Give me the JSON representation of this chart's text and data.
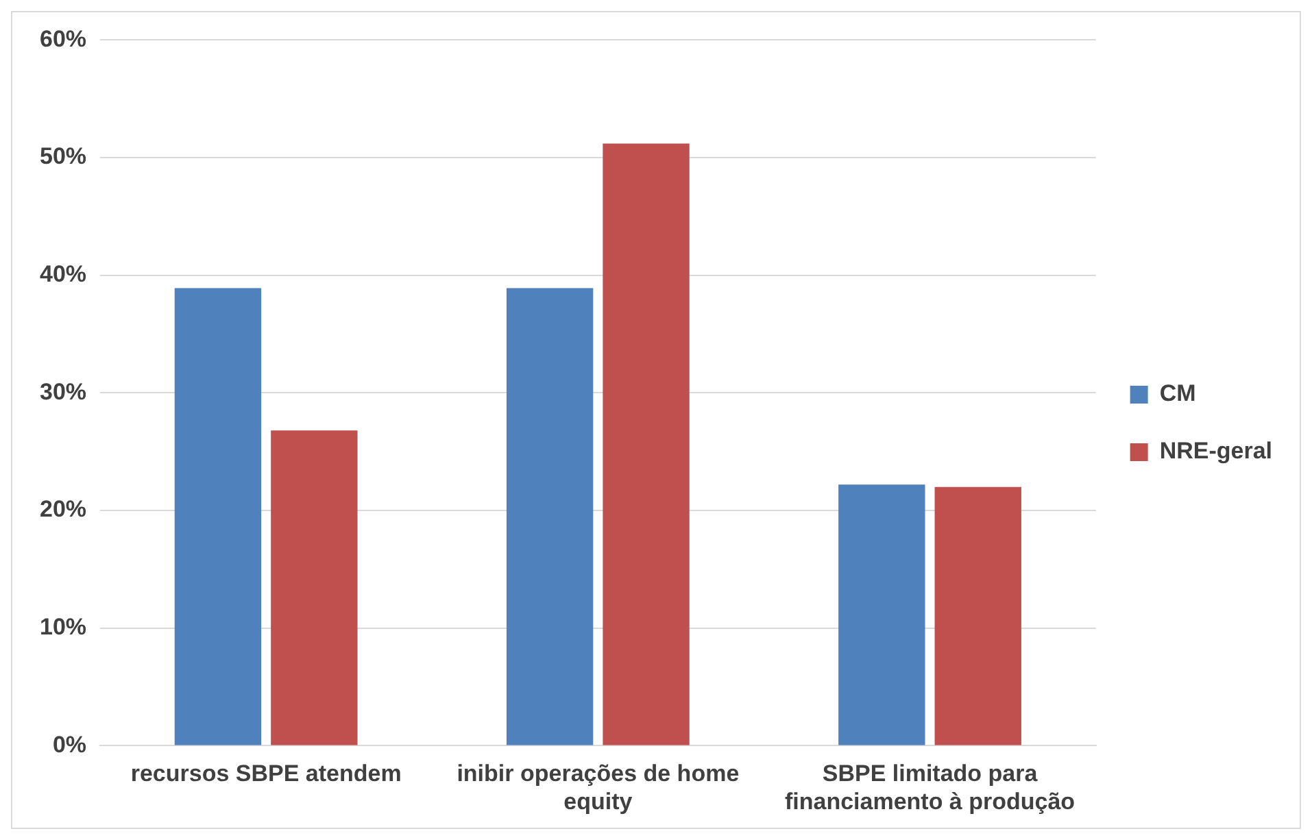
{
  "chart_data": {
    "type": "bar",
    "categories": [
      "recursos SBPE atendem",
      "inibir operações de home equity",
      "SBPE limitado para financiamento à produção"
    ],
    "series": [
      {
        "name": "CM",
        "color": "#4f81bd",
        "values": [
          38.9,
          38.9,
          22.2
        ]
      },
      {
        "name": "NRE-geral",
        "color": "#c0504d",
        "values": [
          26.8,
          51.2,
          22.0
        ]
      }
    ],
    "ylim": [
      0,
      60
    ],
    "yticks": [
      {
        "value": 0,
        "label": "0%"
      },
      {
        "value": 10,
        "label": "10%"
      },
      {
        "value": 20,
        "label": "20%"
      },
      {
        "value": 30,
        "label": "30%"
      },
      {
        "value": 40,
        "label": "40%"
      },
      {
        "value": 50,
        "label": "50%"
      },
      {
        "value": 60,
        "label": "60%"
      }
    ],
    "grid": "y",
    "legend": "right"
  }
}
